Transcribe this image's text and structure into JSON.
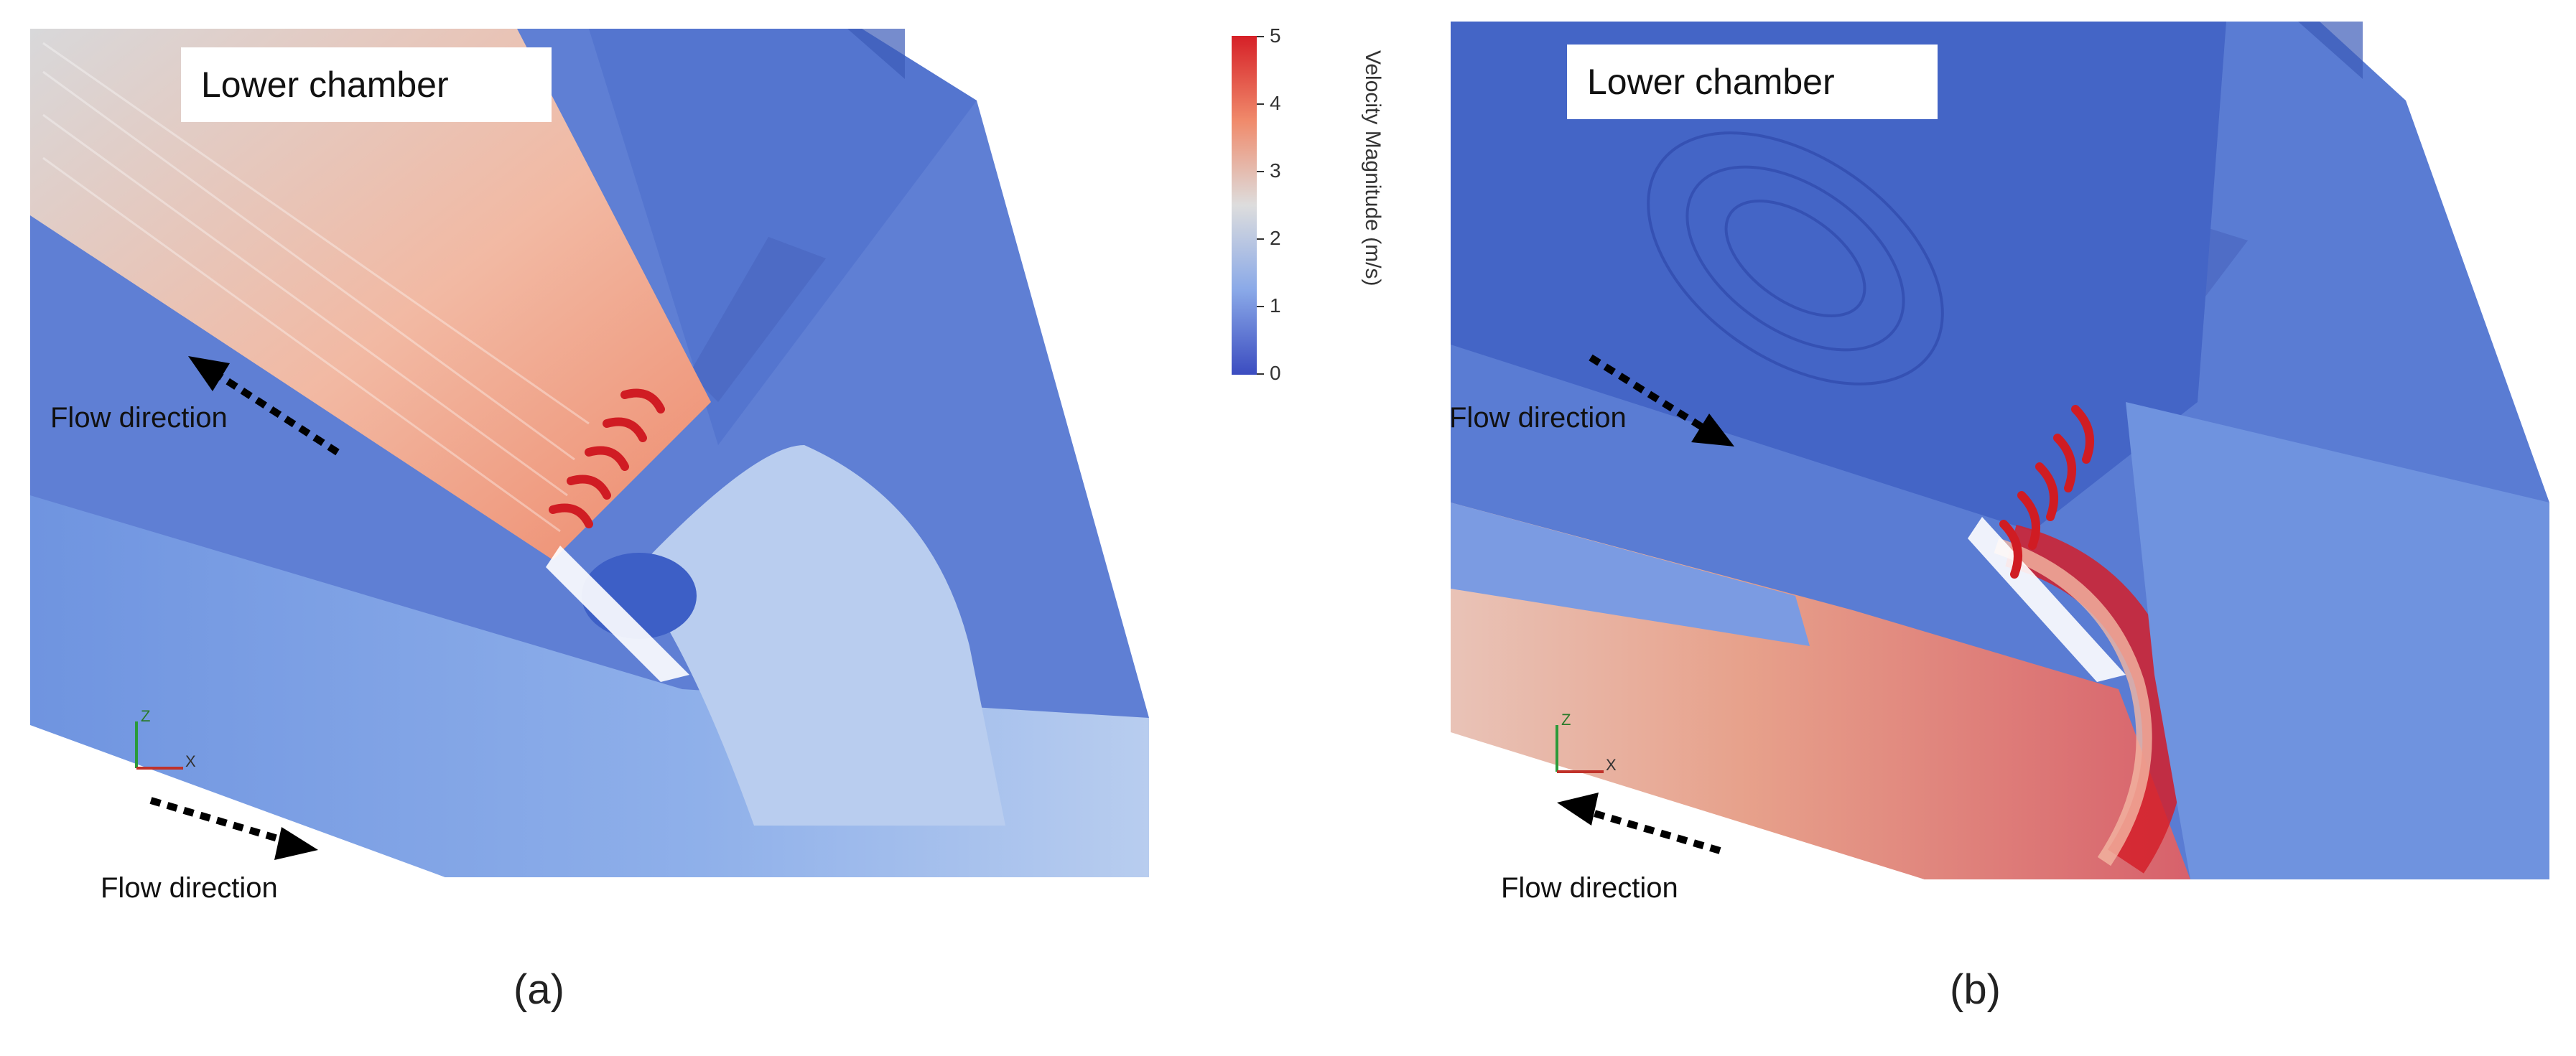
{
  "panels": [
    {
      "id": "a",
      "label": "(a)",
      "chamber_label": "Lower chamber",
      "flow_upper": "Flow direction",
      "flow_lower": "Flow direction"
    },
    {
      "id": "b",
      "label": "(b)",
      "chamber_label": "Lower chamber",
      "flow_upper": "Flow direction",
      "flow_lower": "Flow direction"
    }
  ],
  "colorbar": {
    "title": "Velocity Magnitude (m/s)",
    "ticks": [
      "5",
      "4",
      "3",
      "2",
      "1",
      "0"
    ],
    "min": 0,
    "max": 5,
    "colors": {
      "high": "#d62027",
      "mid": "#dddddd",
      "low": "#3b4cc0"
    }
  },
  "axes_triad": {
    "z": "Z",
    "x": "X"
  }
}
